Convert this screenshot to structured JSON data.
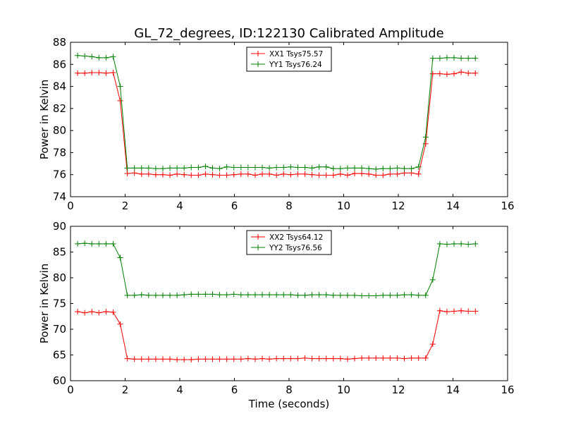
{
  "figure": {
    "title": "GL_72_degrees, ID:122130 Calibrated Amplitude"
  },
  "chart_data": [
    {
      "type": "line",
      "title": "GL_72_degrees, ID:122130 Calibrated Amplitude",
      "xlabel": "",
      "ylabel": "Power in Kelvin",
      "xlim": [
        0,
        16
      ],
      "ylim": [
        74,
        88
      ],
      "xticks": [
        0,
        2,
        4,
        6,
        8,
        10,
        12,
        14,
        16
      ],
      "yticks": [
        74,
        76,
        78,
        80,
        82,
        84,
        86,
        88
      ],
      "grid": false,
      "legend_position": "top-center",
      "x": [
        0.26,
        0.52,
        0.78,
        1.04,
        1.3,
        1.56,
        1.82,
        2.08,
        2.34,
        2.6,
        2.86,
        3.12,
        3.38,
        3.64,
        3.9,
        4.16,
        4.42,
        4.68,
        4.94,
        5.2,
        5.46,
        5.72,
        5.98,
        6.24,
        6.5,
        6.76,
        7.02,
        7.28,
        7.54,
        7.8,
        8.06,
        8.32,
        8.58,
        8.84,
        9.1,
        9.36,
        9.62,
        9.88,
        10.14,
        10.4,
        10.66,
        10.92,
        11.18,
        11.44,
        11.7,
        11.96,
        12.22,
        12.48,
        12.74,
        13.0,
        13.26,
        13.52,
        13.78,
        14.04,
        14.3,
        14.56,
        14.82
      ],
      "series": [
        {
          "name": "XX1 Tsys75.57",
          "color": "#ff0000",
          "values": [
            85.2,
            85.2,
            85.25,
            85.25,
            85.2,
            85.25,
            82.7,
            76.1,
            76.15,
            76.05,
            76.05,
            76.0,
            76.0,
            75.95,
            76.05,
            76.0,
            75.95,
            75.95,
            76.05,
            76.0,
            75.95,
            75.95,
            76.0,
            76.05,
            76.05,
            75.95,
            76.05,
            76.05,
            75.95,
            76.05,
            76.0,
            76.05,
            76.05,
            76.0,
            75.95,
            75.95,
            75.95,
            76.05,
            75.95,
            76.1,
            76.1,
            76.05,
            75.95,
            75.95,
            76.05,
            76.05,
            76.15,
            76.15,
            76.05,
            78.8,
            85.15,
            85.15,
            85.1,
            85.15,
            85.3,
            85.2,
            85.2
          ]
        },
        {
          "name": "YY1 Tsys76.24",
          "color": "#008000",
          "values": [
            86.8,
            86.75,
            86.7,
            86.6,
            86.6,
            86.7,
            84.0,
            76.6,
            76.6,
            76.6,
            76.6,
            76.55,
            76.55,
            76.6,
            76.6,
            76.6,
            76.65,
            76.65,
            76.75,
            76.6,
            76.55,
            76.7,
            76.65,
            76.65,
            76.65,
            76.65,
            76.65,
            76.6,
            76.65,
            76.65,
            76.7,
            76.65,
            76.65,
            76.6,
            76.7,
            76.7,
            76.55,
            76.55,
            76.6,
            76.6,
            76.6,
            76.55,
            76.5,
            76.55,
            76.55,
            76.6,
            76.55,
            76.55,
            76.7,
            79.4,
            86.55,
            86.55,
            86.6,
            86.6,
            86.55,
            86.55,
            86.55
          ]
        }
      ]
    },
    {
      "type": "line",
      "title": "",
      "xlabel": "Time (seconds)",
      "ylabel": "Power in Kelvin",
      "xlim": [
        0,
        16
      ],
      "ylim": [
        60,
        90
      ],
      "xticks": [
        0,
        2,
        4,
        6,
        8,
        10,
        12,
        14,
        16
      ],
      "yticks": [
        60,
        65,
        70,
        75,
        80,
        85,
        90
      ],
      "grid": false,
      "legend_position": "top-center",
      "x": [
        0.26,
        0.52,
        0.78,
        1.04,
        1.3,
        1.56,
        1.82,
        2.08,
        2.34,
        2.6,
        2.86,
        3.12,
        3.38,
        3.64,
        3.9,
        4.16,
        4.42,
        4.68,
        4.94,
        5.2,
        5.46,
        5.72,
        5.98,
        6.24,
        6.5,
        6.76,
        7.02,
        7.28,
        7.54,
        7.8,
        8.06,
        8.32,
        8.58,
        8.84,
        9.1,
        9.36,
        9.62,
        9.88,
        10.14,
        10.4,
        10.66,
        10.92,
        11.18,
        11.44,
        11.7,
        11.96,
        12.22,
        12.48,
        12.74,
        13.0,
        13.26,
        13.52,
        13.78,
        14.04,
        14.3,
        14.56,
        14.82
      ],
      "series": [
        {
          "name": "XX2 Tsys64.12",
          "color": "#ff0000",
          "values": [
            73.4,
            73.2,
            73.4,
            73.2,
            73.4,
            73.3,
            71.0,
            64.3,
            64.2,
            64.2,
            64.2,
            64.2,
            64.2,
            64.2,
            64.1,
            64.1,
            64.1,
            64.2,
            64.2,
            64.2,
            64.2,
            64.2,
            64.2,
            64.2,
            64.3,
            64.2,
            64.3,
            64.2,
            64.3,
            64.3,
            64.3,
            64.3,
            64.4,
            64.3,
            64.3,
            64.3,
            64.3,
            64.3,
            64.2,
            64.3,
            64.4,
            64.4,
            64.4,
            64.4,
            64.4,
            64.4,
            64.3,
            64.4,
            64.4,
            64.4,
            67.1,
            73.6,
            73.4,
            73.5,
            73.6,
            73.5,
            73.5
          ]
        },
        {
          "name": "YY2 Tsys76.56",
          "color": "#008000",
          "values": [
            86.6,
            86.7,
            86.6,
            86.6,
            86.6,
            86.6,
            83.9,
            76.6,
            76.6,
            76.7,
            76.6,
            76.6,
            76.6,
            76.6,
            76.6,
            76.7,
            76.8,
            76.8,
            76.8,
            76.8,
            76.7,
            76.7,
            76.8,
            76.7,
            76.7,
            76.7,
            76.7,
            76.7,
            76.7,
            76.7,
            76.7,
            76.6,
            76.6,
            76.7,
            76.7,
            76.7,
            76.6,
            76.6,
            76.6,
            76.6,
            76.5,
            76.5,
            76.5,
            76.6,
            76.6,
            76.6,
            76.7,
            76.7,
            76.6,
            76.6,
            79.6,
            86.6,
            86.5,
            86.6,
            86.6,
            86.5,
            86.6
          ]
        }
      ]
    }
  ]
}
